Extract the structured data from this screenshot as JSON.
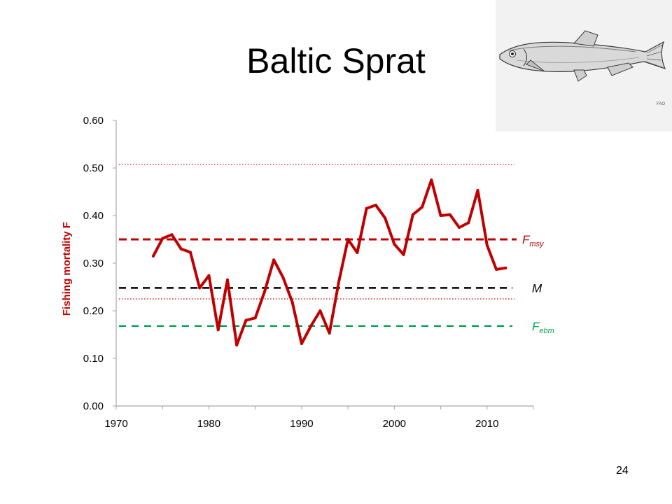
{
  "slide": {
    "title": "Baltic Sprat",
    "page_number": "24",
    "image_credit": "FAO"
  },
  "icons": {
    "fish": "sprat-fish-illustration"
  },
  "colors": {
    "f_series": "#c00000",
    "fmsy_line": "#c00000",
    "m_line": "#000000",
    "febm_line": "#00a651",
    "band_lines": "#c00000",
    "axis": "#a6a6a6"
  },
  "chart_data": {
    "type": "line",
    "title": "",
    "xlabel": "",
    "ylabel": "Fishing mortality F",
    "xlim": [
      1970,
      2015
    ],
    "ylim": [
      0,
      0.6
    ],
    "x_ticks": [
      1970,
      1980,
      1990,
      2000,
      2010
    ],
    "y_ticks": [
      "0.00",
      "0.10",
      "0.20",
      "0.30",
      "0.40",
      "0.50",
      "0.60"
    ],
    "grid": false,
    "series": [
      {
        "x": [
          1974,
          1975,
          1976,
          1977,
          1978,
          1979,
          1980,
          1981,
          1982,
          1983,
          1984,
          1985,
          1986,
          1987,
          1988,
          1989,
          1990,
          1991,
          1992,
          1993,
          1994,
          1995,
          1996,
          1997,
          1998,
          1999,
          2000,
          2001,
          2002,
          2003,
          2004,
          2005,
          2006,
          2007,
          2008,
          2009,
          2010,
          2011,
          2012
        ],
        "y": [
          0.315,
          0.352,
          0.36,
          0.33,
          0.323,
          0.248,
          0.274,
          0.16,
          0.265,
          0.128,
          0.18,
          0.185,
          0.24,
          0.307,
          0.27,
          0.218,
          0.131,
          0.168,
          0.2,
          0.153,
          0.26,
          0.35,
          0.322,
          0.415,
          0.422,
          0.395,
          0.34,
          0.318,
          0.402,
          0.418,
          0.475,
          0.4,
          0.402,
          0.375,
          0.385,
          0.453,
          0.338,
          0.287,
          0.29
        ]
      }
    ],
    "reference_lines": [
      {
        "name": "Fmsy",
        "label_main": "F",
        "label_sub": "msy",
        "y": 0.35,
        "style": "dashed",
        "color": "#c00000"
      },
      {
        "name": "M",
        "label_main": "M",
        "label_sub": "",
        "y": 0.248,
        "style": "dashed",
        "color": "#000000"
      },
      {
        "name": "Febm",
        "label_main": "F",
        "label_sub": "ebm",
        "y": 0.168,
        "style": "dashed",
        "color": "#00a651"
      }
    ],
    "range_lines": [
      {
        "y": 0.508,
        "style": "dotted",
        "color": "#c00000"
      },
      {
        "y": 0.225,
        "style": "dotted",
        "color": "#c00000"
      }
    ]
  }
}
